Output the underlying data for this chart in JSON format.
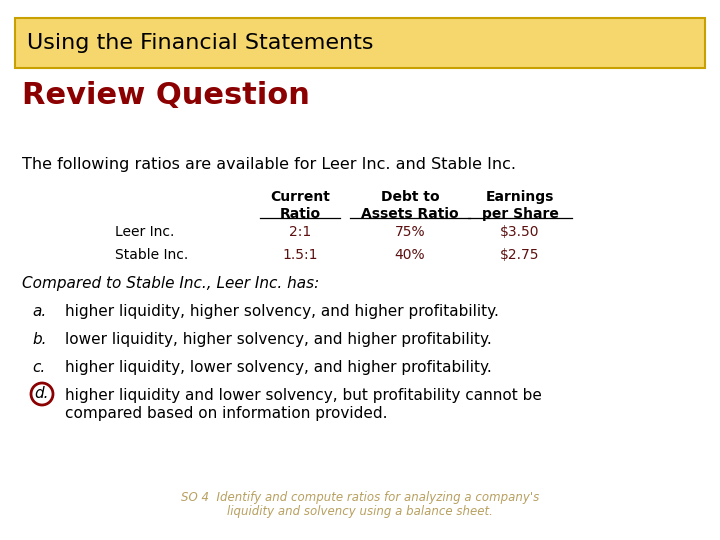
{
  "title_box_text": "Using the Financial Statements",
  "title_box_bg": "#F5D76E",
  "title_box_border": "#C8A000",
  "title_box_text_color": "#000000",
  "review_question_text": "Review Question",
  "review_question_color": "#8B0000",
  "intro_text": "The following ratios are available for Leer Inc. and Stable Inc.",
  "table_col1_header": "Current\nRatio",
  "table_col2_header": "Debt to\nAssets Ratio",
  "table_col3_header": "Earnings\nper Share",
  "table_row1_label": "Leer Inc.",
  "table_row1_col1": "2:1",
  "table_row1_col2": "75%",
  "table_row1_col3": "$3.50",
  "table_row2_label": "Stable Inc.",
  "table_row2_col1": "1.5:1",
  "table_row2_col2": "40%",
  "table_row2_col3": "$2.75",
  "compare_text": "Compared to Stable Inc., Leer Inc. has:",
  "option_a_label": "a.",
  "option_a_text": "higher liquidity, higher solvency, and higher profitability.",
  "option_b_label": "b.",
  "option_b_text": "lower liquidity, higher solvency, and higher profitability.",
  "option_c_label": "c.",
  "option_c_text": "higher liquidity, lower solvency, and higher profitability.",
  "option_d_label": "d.",
  "option_d_text1": "higher liquidity and lower solvency, but profitability cannot be",
  "option_d_text2": "compared based on information provided.",
  "correct_option": "d.",
  "correct_circle_color": "#8B0000",
  "footnote_line1": "SO 4  Identify and compute ratios for analyzing a company's",
  "footnote_line2": "liquidity and solvency using a balance sheet.",
  "footnote_color": "#B8A060",
  "bg_color": "#FFFFFF",
  "body_text_color": "#000000",
  "table_data_color": "#5C1010"
}
